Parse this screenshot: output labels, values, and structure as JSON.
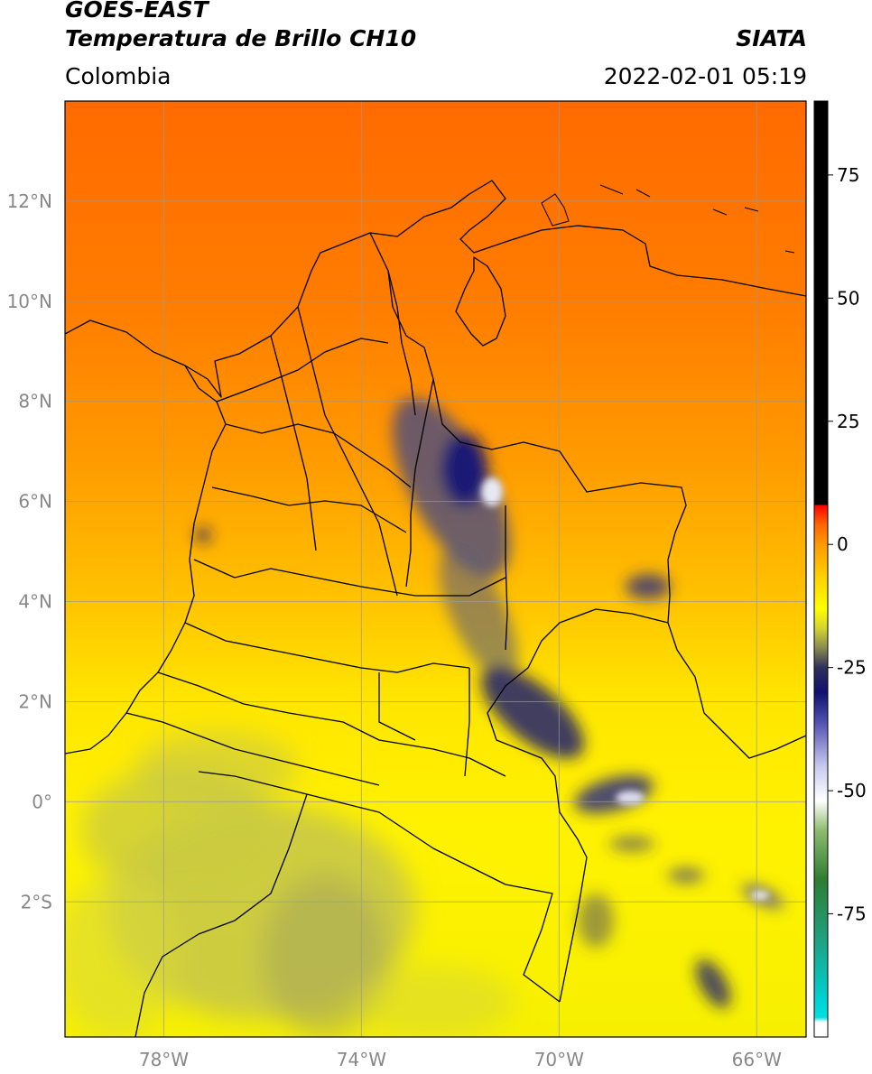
{
  "header": {
    "satellite": "GOES-EAST",
    "product": "Temperatura de Brillo CH10",
    "agency": "SIATA",
    "region": "Colombia",
    "datetime": "2022-02-01 05:19"
  },
  "map": {
    "lon_range": [
      -80,
      -65
    ],
    "lat_range": [
      -4.7,
      14
    ],
    "lon_ticks": [
      {
        "value": -78,
        "label": "78°W"
      },
      {
        "value": -74,
        "label": "74°W"
      },
      {
        "value": -70,
        "label": "70°W"
      },
      {
        "value": -66,
        "label": "66°W"
      }
    ],
    "lat_ticks": [
      {
        "value": 12,
        "label": "12°N"
      },
      {
        "value": 10,
        "label": "10°N"
      },
      {
        "value": 8,
        "label": "8°N"
      },
      {
        "value": 6,
        "label": "6°N"
      },
      {
        "value": 4,
        "label": "4°N"
      },
      {
        "value": 2,
        "label": "2°N"
      },
      {
        "value": 0,
        "label": "0°"
      },
      {
        "value": -2,
        "label": "2°S"
      }
    ],
    "gridlines": true
  },
  "colorbar": {
    "range": [
      -100,
      90
    ],
    "ticks": [
      {
        "value": 75,
        "label": "75"
      },
      {
        "value": 50,
        "label": "50"
      },
      {
        "value": 25,
        "label": "25"
      },
      {
        "value": 0,
        "label": "0"
      },
      {
        "value": -25,
        "label": "-25"
      },
      {
        "value": -50,
        "label": "-50"
      },
      {
        "value": -75,
        "label": "-75"
      }
    ],
    "stops": [
      {
        "value": -100,
        "color": "#ffffff"
      },
      {
        "value": -97,
        "color": "#ffffff"
      },
      {
        "value": -96,
        "color": "#00e0e0"
      },
      {
        "value": -92,
        "color": "#00d0d0"
      },
      {
        "value": -80,
        "color": "#20a080"
      },
      {
        "value": -68,
        "color": "#2e7d32"
      },
      {
        "value": -58,
        "color": "#8fbc70"
      },
      {
        "value": -52,
        "color": "#ffffff"
      },
      {
        "value": -45,
        "color": "#c8c8ee"
      },
      {
        "value": -36,
        "color": "#5050b0"
      },
      {
        "value": -30,
        "color": "#101070"
      },
      {
        "value": -25,
        "color": "#30305a"
      },
      {
        "value": -21,
        "color": "#8a8a50"
      },
      {
        "value": -17,
        "color": "#d4d430"
      },
      {
        "value": -13,
        "color": "#ffff00"
      },
      {
        "value": -6,
        "color": "#ffcc00"
      },
      {
        "value": 0,
        "color": "#ff9900"
      },
      {
        "value": 4,
        "color": "#ff6600"
      },
      {
        "value": 8,
        "color": "#ff0000"
      },
      {
        "value": 8.01,
        "color": "#000000"
      },
      {
        "value": 90,
        "color": "#000000"
      }
    ]
  },
  "colors": {
    "cold_orange": "#ff6a00",
    "orange": "#ff9a00",
    "yellow": "#ffef00",
    "olive": "#c8c844",
    "blue": "#151575",
    "border": "#000000",
    "grid": "#9a9a9a"
  }
}
